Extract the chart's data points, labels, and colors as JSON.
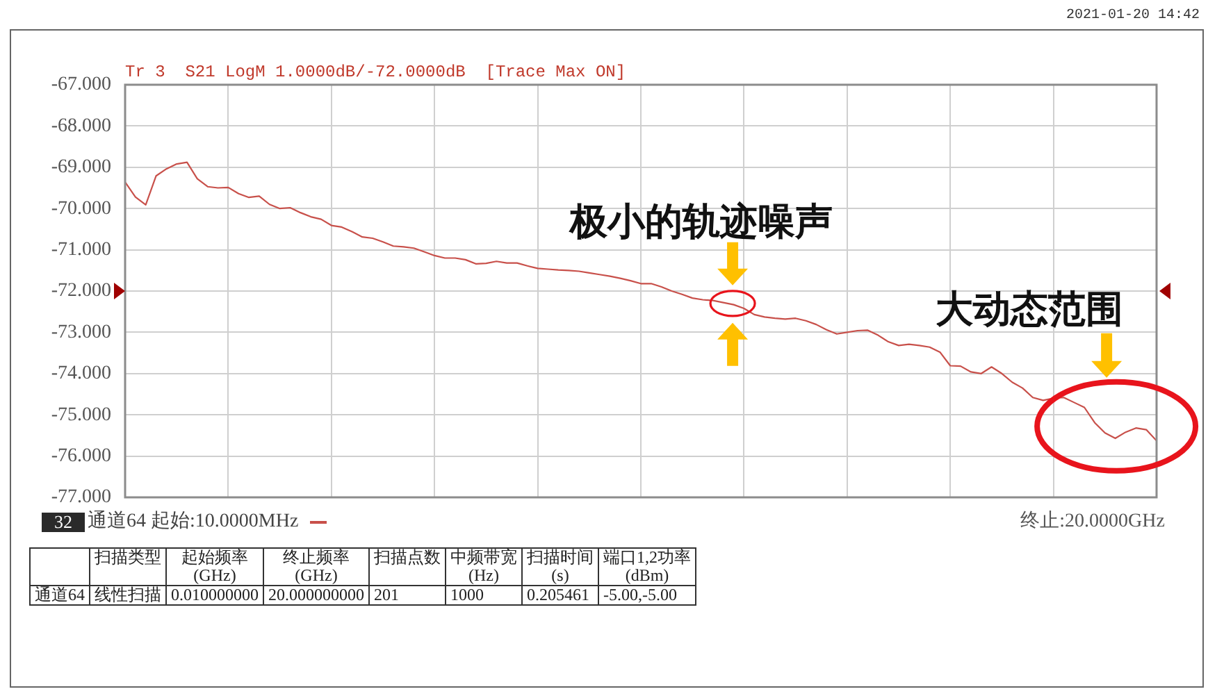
{
  "chart_data": {
    "type": "line",
    "title": "Tr 3  S21 LogM 1.0000dB/-72.0000dB  [Trace Max ON]",
    "annotations": [
      "2021-01-20 14:42",
      "32",
      "通道64 起始:10.0000MHz",
      "终止:20.0000GHz",
      "扫描类型",
      "起始频率\n(GHz)",
      "终止频率\n(GHz)",
      "扫描点数",
      "中频带宽\n(Hz)",
      "扫描时间\n(s)",
      "端口1,2功率\n(dBm)",
      "通道64",
      "线性扫描",
      "0.010000000",
      "20.000000000",
      "201",
      "1000",
      "0.205461",
      "-5.00,-5.00",
      {
        "text": "极小的轨迹噪声",
        "y": -72.3
      },
      "大动态范围"
    ],
    "categories": [
      null,
      null,
      null,
      null,
      null,
      null,
      null,
      null,
      null,
      null,
      null,
      null,
      null,
      null,
      null,
      null,
      null,
      null,
      null,
      null,
      null,
      null,
      null,
      null,
      null,
      null,
      null,
      null,
      null,
      null,
      null,
      null,
      null,
      null,
      null,
      null,
      null,
      null,
      null,
      null,
      null,
      null,
      null,
      null,
      null,
      null,
      null,
      null,
      null,
      null,
      null,
      null,
      null,
      null,
      null,
      null,
      null,
      null,
      null,
      null,
      null,
      null,
      null,
      null,
      null,
      null,
      null,
      null,
      null,
      null,
      null,
      null,
      null,
      null,
      null,
      null,
      null,
      null,
      null,
      null,
      null,
      null,
      null,
      null,
      null,
      null,
      null,
      null,
      null,
      null,
      null,
      null,
      null,
      null,
      null,
      null,
      null,
      null,
      null,
      null,
      null
    ],
    "ylim": [
      -77,
      -67
    ],
    "yticks": [
      {
        "value": -77,
        "label": "-77.000"
      },
      {
        "value": -76,
        "label": "-76.000"
      },
      {
        "value": -75,
        "label": "-75.000"
      },
      {
        "value": -74,
        "label": "-74.000"
      },
      {
        "value": -73,
        "label": "-73.000"
      },
      {
        "value": -72,
        "label": "-72.000"
      },
      {
        "value": -71,
        "label": "-71.000"
      },
      {
        "value": -70,
        "label": "-70.000"
      },
      {
        "value": -69,
        "label": "-69.000"
      },
      {
        "value": -68,
        "label": "-68.000"
      },
      {
        "value": -67,
        "label": "-67.000"
      }
    ],
    "series": [
      {
        "color": "#c8504a",
        "values": [
          -69.36,
          -69.72,
          -69.91,
          -69.21,
          -69.04,
          -68.92,
          -68.88,
          -69.28,
          -69.47,
          -69.5,
          -69.49,
          -69.64,
          -69.73,
          -69.7,
          -69.9,
          -70.0,
          -69.98,
          -70.1,
          -70.2,
          -70.26,
          -70.41,
          -70.45,
          -70.56,
          -70.69,
          -70.72,
          -70.81,
          -70.91,
          -70.93,
          -70.96,
          -71.05,
          -71.14,
          -71.2,
          -71.2,
          -71.24,
          -71.34,
          -71.33,
          -71.28,
          -71.32,
          -71.32,
          -71.39,
          -71.45,
          -71.47,
          -71.49,
          -71.5,
          -71.52,
          -71.56,
          -71.6,
          -71.64,
          -71.69,
          -71.75,
          -71.82,
          -71.82,
          -71.9,
          -72.0,
          -72.08,
          -72.17,
          -72.21,
          -72.23,
          -72.28,
          -72.33,
          -72.42,
          -72.57,
          -72.63,
          -72.66,
          -72.68,
          -72.66,
          -72.72,
          -72.81,
          -72.94,
          -73.04,
          -73.0,
          -72.96,
          -72.95,
          -73.07,
          -73.23,
          -73.32,
          -73.29,
          -73.32,
          -73.36,
          -73.48,
          -73.81,
          -73.82,
          -73.96,
          -74.0,
          -73.84,
          -74.0,
          -74.21,
          -74.35,
          -74.58,
          -74.65,
          -74.6,
          -74.58,
          -74.7,
          -74.82,
          -75.19,
          -75.44,
          -75.57,
          -75.42,
          -75.32,
          -75.36,
          -75.63
        ]
      }
    ],
    "grid": true,
    "tick_labels": "y"
  }
}
